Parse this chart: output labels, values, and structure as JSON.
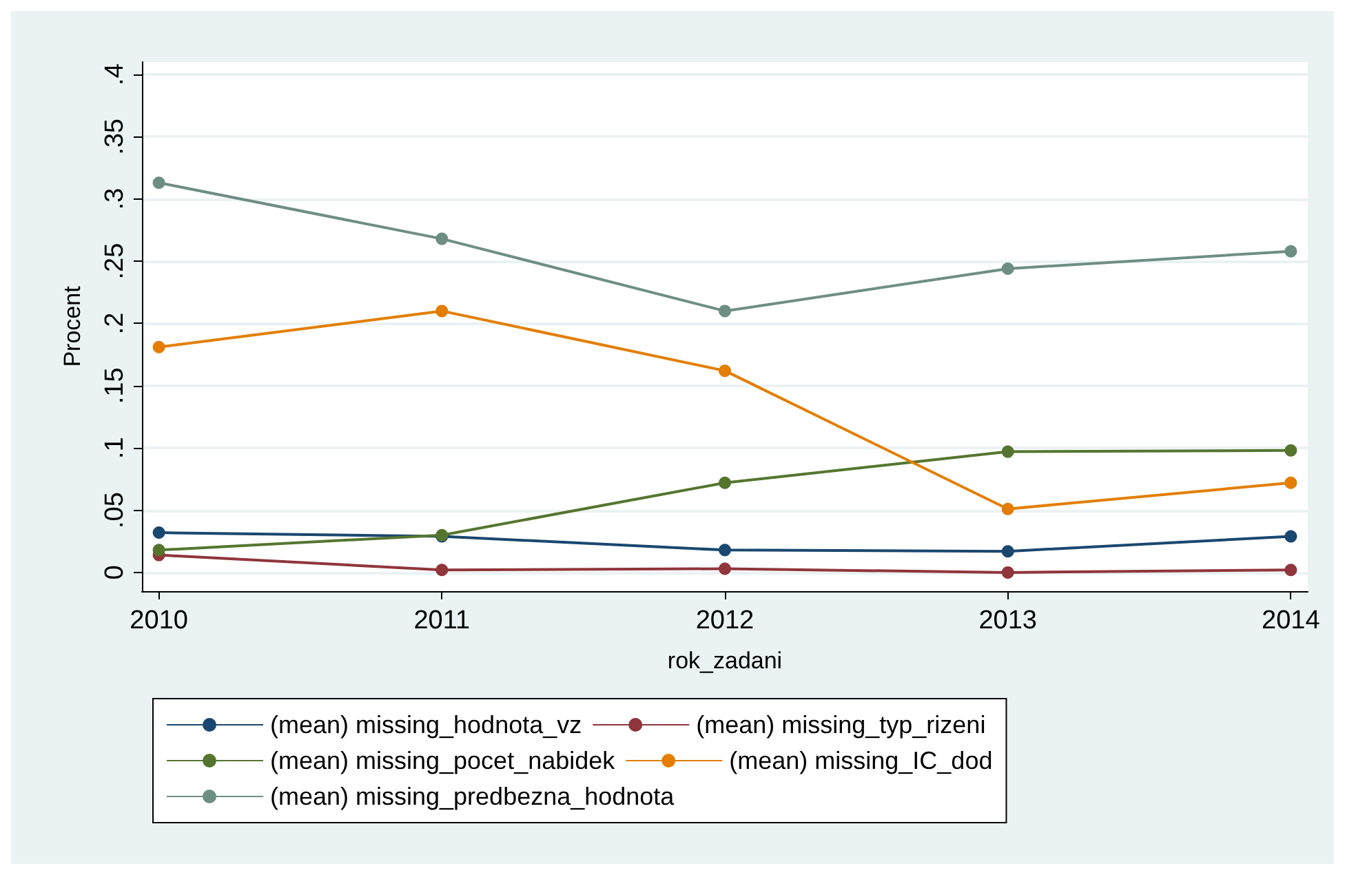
{
  "chart_data": {
    "type": "line",
    "xlabel": "rok_zadani",
    "ylabel": "Procent",
    "x": [
      2010,
      2011,
      2012,
      2013,
      2014
    ],
    "xlim": [
      2009.94,
      2014.06
    ],
    "xticks": [
      2010,
      2011,
      2012,
      2013,
      2014
    ],
    "ylim": [
      -0.015,
      0.41
    ],
    "yticks": [
      0,
      {
        "value": 0.05,
        "label": ".05"
      },
      {
        "value": 0.1,
        "label": ".1"
      },
      {
        "value": 0.15,
        "label": ".15"
      },
      {
        "value": 0.2,
        "label": ".2"
      },
      {
        "value": 0.25,
        "label": ".25"
      },
      {
        "value": 0.3,
        "label": ".3"
      },
      {
        "value": 0.35,
        "label": ".35"
      },
      {
        "value": 0.4,
        "label": ".4"
      }
    ],
    "series": [
      {
        "name": "(mean) missing_hodnota_vz",
        "color": "#1a476f",
        "values": [
          0.032,
          0.029,
          0.018,
          0.017,
          0.029
        ]
      },
      {
        "name": "(mean) missing_typ_rizeni",
        "color": "#90353b",
        "values": [
          0.014,
          0.002,
          0.003,
          0.0,
          0.002
        ]
      },
      {
        "name": "(mean) missing_pocet_nabidek",
        "color": "#55752f",
        "values": [
          0.018,
          0.03,
          0.072,
          0.097,
          0.098
        ]
      },
      {
        "name": "(mean) missing_IC_dod",
        "color": "#e37e00",
        "values": [
          0.181,
          0.21,
          0.162,
          0.051,
          0.072
        ]
      },
      {
        "name": "(mean) missing_predbezna_hodnota",
        "color": "#6e8e84",
        "values": [
          0.313,
          0.268,
          0.21,
          0.244,
          0.258
        ]
      }
    ],
    "grid": "y",
    "legend": "bottom",
    "marker": "circle",
    "line_style": "solid"
  }
}
